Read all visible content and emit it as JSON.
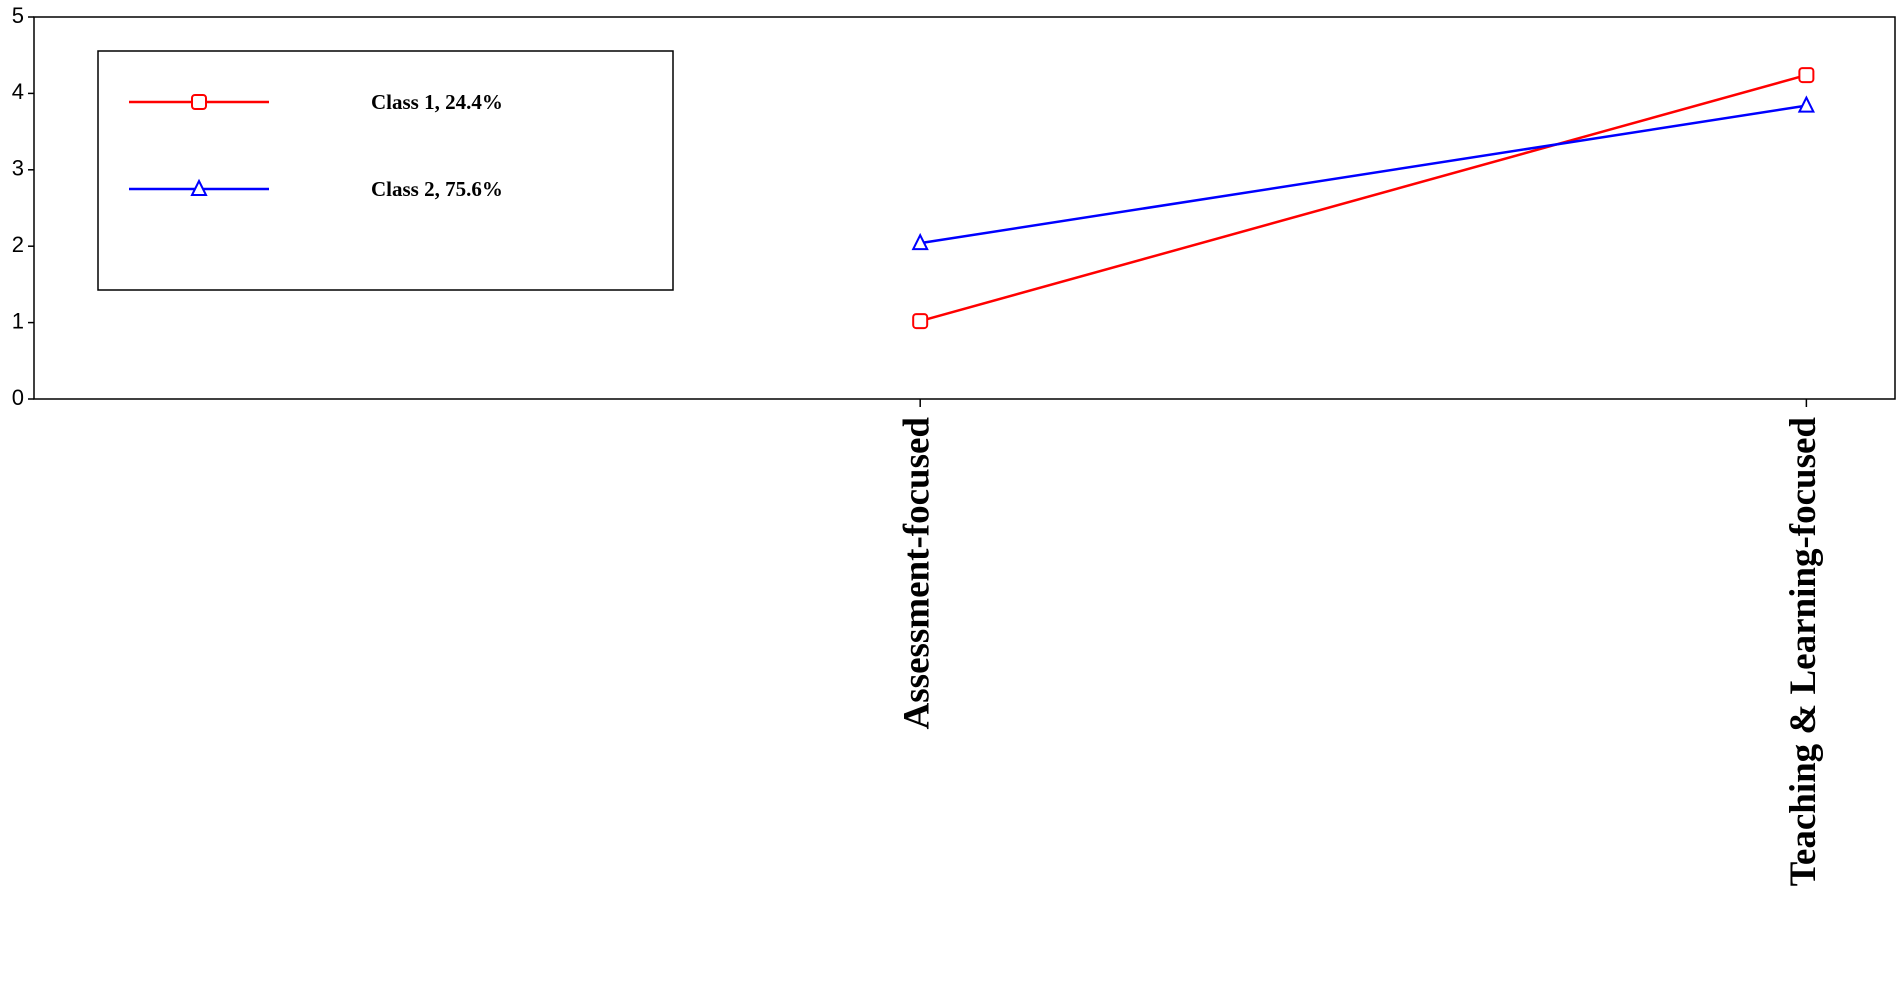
{
  "chart_data": {
    "type": "line",
    "categories": [
      "Assessment-focused",
      "Teaching & Learning-focused"
    ],
    "series": [
      {
        "name": "Class 1, 24.4%",
        "color": "#ff0000",
        "marker": "square",
        "values": [
          1.02,
          4.24
        ]
      },
      {
        "name": "Class 2, 75.6%",
        "color": "#0000ff",
        "marker": "triangle",
        "values": [
          2.04,
          3.84
        ]
      }
    ],
    "ylim": [
      0,
      5
    ],
    "yticks": [
      0,
      1,
      2,
      3,
      4,
      5
    ],
    "grid": false,
    "legend": "upper left"
  }
}
